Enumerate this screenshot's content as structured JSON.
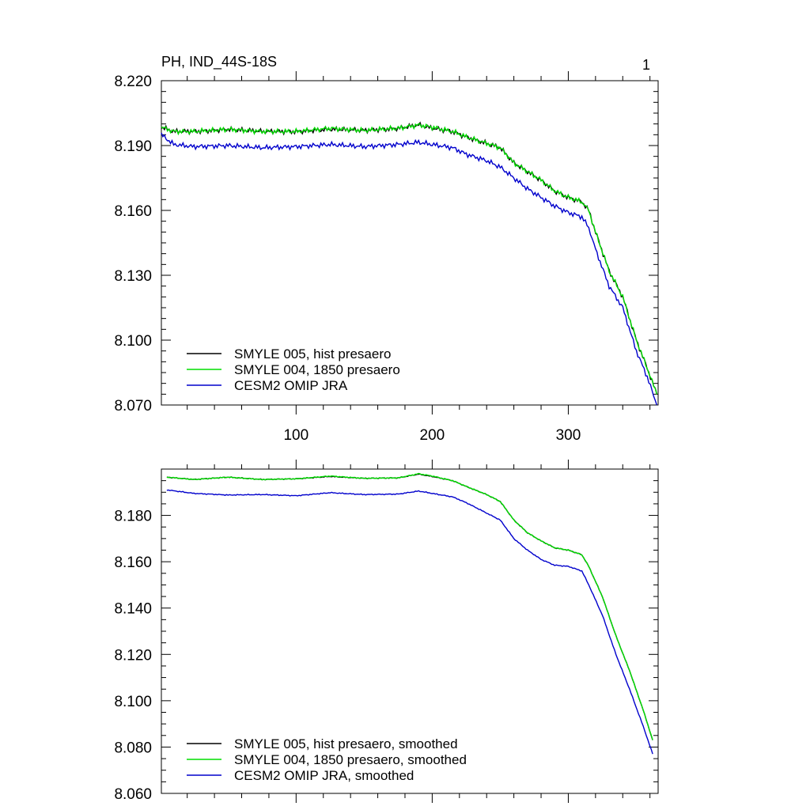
{
  "figure": {
    "title": "PH, IND_44S-18S",
    "panel_number": "1"
  },
  "chart_data": [
    {
      "type": "line",
      "panel": "raw",
      "title": "PH, IND_44S-18S",
      "xlabel": "",
      "ylabel": "",
      "xlim": [
        1,
        366
      ],
      "ylim": [
        8.07,
        8.22
      ],
      "x_ticks": [
        100,
        200,
        300
      ],
      "x_tick_labels": [
        "100",
        "200",
        "300"
      ],
      "y_ticks": [
        8.07,
        8.1,
        8.13,
        8.16,
        8.19,
        8.22
      ],
      "y_tick_labels": [
        "8.070",
        "8.100",
        "8.130",
        "8.160",
        "8.190",
        "8.220"
      ],
      "legend_position": "bottom-left",
      "x": [
        1,
        10,
        25,
        50,
        75,
        100,
        125,
        150,
        175,
        190,
        200,
        215,
        225,
        240,
        250,
        260,
        270,
        280,
        290,
        300,
        310,
        315,
        320,
        330,
        340,
        350,
        358,
        365
      ],
      "series": [
        {
          "name": "SMYLE 005, hist presaero",
          "color": "#000000",
          "values": [
            8.1985,
            8.1965,
            8.1965,
            8.1975,
            8.1965,
            8.1965,
            8.1975,
            8.197,
            8.198,
            8.1995,
            8.198,
            8.1965,
            8.194,
            8.191,
            8.189,
            8.182,
            8.178,
            8.174,
            8.169,
            8.166,
            8.164,
            8.16,
            8.15,
            8.132,
            8.12,
            8.1,
            8.087,
            8.075
          ]
        },
        {
          "name": "SMYLE 004, 1850 presaero",
          "color": "#00dd00",
          "values": [
            8.1985,
            8.1965,
            8.1965,
            8.1975,
            8.1965,
            8.1965,
            8.198,
            8.197,
            8.198,
            8.1995,
            8.1985,
            8.1965,
            8.194,
            8.191,
            8.189,
            8.182,
            8.178,
            8.174,
            8.169,
            8.166,
            8.164,
            8.16,
            8.15,
            8.132,
            8.12,
            8.1,
            8.087,
            8.075
          ]
        },
        {
          "name": "CESM2 OMIP JRA",
          "color": "#0000cc",
          "values": [
            8.195,
            8.1905,
            8.1895,
            8.19,
            8.189,
            8.1895,
            8.1905,
            8.1895,
            8.1905,
            8.1915,
            8.1905,
            8.189,
            8.186,
            8.183,
            8.18,
            8.175,
            8.17,
            8.166,
            8.162,
            8.159,
            8.157,
            8.152,
            8.142,
            8.125,
            8.115,
            8.095,
            8.083,
            8.07
          ]
        }
      ]
    },
    {
      "type": "line",
      "panel": "smoothed",
      "xlabel": "",
      "ylabel": "",
      "xlim": [
        1,
        366
      ],
      "ylim": [
        8.06,
        8.2
      ],
      "x_ticks": [
        100,
        200,
        300
      ],
      "x_tick_labels": [
        "",
        "",
        ""
      ],
      "y_ticks": [
        8.06,
        8.08,
        8.1,
        8.12,
        8.14,
        8.16,
        8.18
      ],
      "y_tick_labels": [
        "8.060",
        "8.080",
        "8.100",
        "8.120",
        "8.140",
        "8.160",
        "8.180"
      ],
      "legend_position": "bottom-left",
      "x": [
        5,
        25,
        50,
        75,
        100,
        125,
        150,
        175,
        190,
        200,
        215,
        225,
        240,
        250,
        260,
        270,
        280,
        290,
        300,
        310,
        315,
        325,
        335,
        345,
        355,
        362
      ],
      "series": [
        {
          "name": "SMYLE 005, hist presaero, smoothed",
          "color": "#000000",
          "values": [
            8.1965,
            8.1955,
            8.1965,
            8.1955,
            8.1958,
            8.1968,
            8.196,
            8.1962,
            8.1978,
            8.1968,
            8.195,
            8.1925,
            8.189,
            8.186,
            8.178,
            8.1725,
            8.169,
            8.166,
            8.165,
            8.163,
            8.158,
            8.145,
            8.128,
            8.113,
            8.096,
            8.083
          ]
        },
        {
          "name": "SMYLE 004, 1850 presaero, smoothed",
          "color": "#00dd00",
          "values": [
            8.1965,
            8.1955,
            8.1965,
            8.1955,
            8.1958,
            8.197,
            8.196,
            8.1962,
            8.198,
            8.197,
            8.195,
            8.1925,
            8.189,
            8.186,
            8.178,
            8.1725,
            8.169,
            8.166,
            8.165,
            8.163,
            8.158,
            8.145,
            8.128,
            8.113,
            8.096,
            8.083
          ]
        },
        {
          "name": "CESM2 OMIP JRA, smoothed",
          "color": "#0000cc",
          "values": [
            8.191,
            8.1895,
            8.1888,
            8.189,
            8.1885,
            8.1898,
            8.189,
            8.1892,
            8.1905,
            8.1895,
            8.188,
            8.1855,
            8.181,
            8.178,
            8.17,
            8.165,
            8.161,
            8.1585,
            8.158,
            8.156,
            8.15,
            8.137,
            8.12,
            8.105,
            8.089,
            8.077
          ]
        }
      ]
    }
  ]
}
